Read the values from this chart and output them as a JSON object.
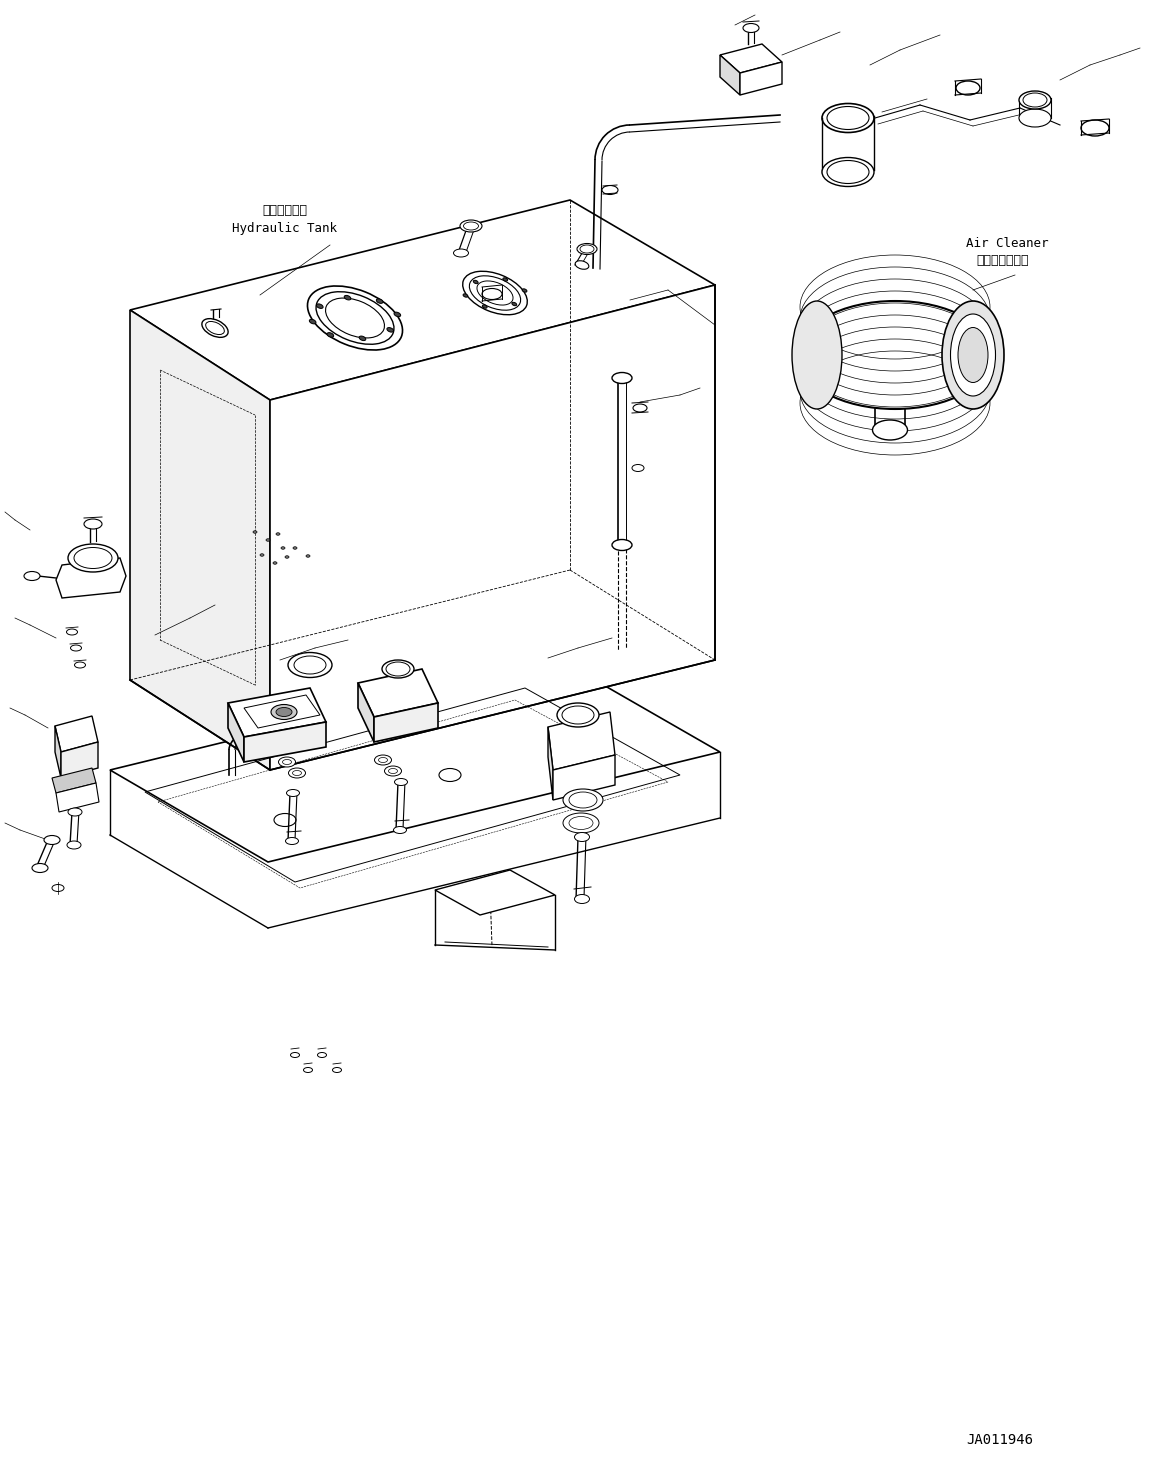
{
  "background_color": "#ffffff",
  "line_color": "#000000",
  "line_width": 0.8,
  "fig_width": 11.53,
  "fig_height": 14.59,
  "dpi": 100,
  "label_hydraulic_tank_ja": "作動油タンク",
  "label_hydraulic_tank_en": "Hydraulic Tank",
  "label_air_cleaner_ja": "エアークリーナ",
  "label_air_cleaner_en": "Air Cleaner",
  "label_code": "JA011946",
  "font_family": "monospace"
}
